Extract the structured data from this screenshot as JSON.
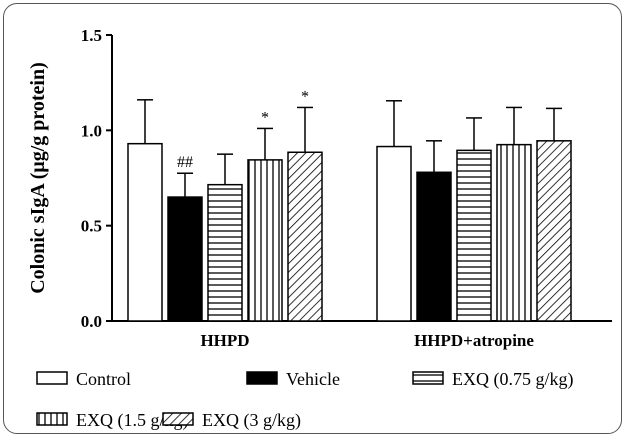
{
  "chart_data": {
    "type": "bar",
    "ylabel": "Colonic sIgA (μg/g protein)",
    "ylim": [
      0,
      1.5
    ],
    "yticks": [
      "0.0",
      "0.5",
      "1.0",
      "1.5"
    ],
    "yticks_values": [
      0,
      0.5,
      1.0,
      1.5
    ],
    "categories": [
      "HHPD",
      "HHPD+atropine"
    ],
    "series": [
      {
        "name": "Control",
        "pattern": "white",
        "values": [
          0.93,
          0.915
        ],
        "errors": [
          0.23,
          0.24
        ],
        "annotations": [
          "",
          ""
        ]
      },
      {
        "name": "Vehicle",
        "pattern": "black",
        "values": [
          0.65,
          0.78
        ],
        "errors": [
          0.125,
          0.165
        ],
        "annotations": [
          "##",
          ""
        ]
      },
      {
        "name": "EXQ (0.75 g/kg)",
        "pattern": "horizontal",
        "values": [
          0.715,
          0.895
        ],
        "errors": [
          0.16,
          0.17
        ],
        "annotations": [
          "",
          ""
        ]
      },
      {
        "name": "EXQ (1.5 g/kg)",
        "pattern": "vertical",
        "values": [
          0.845,
          0.925
        ],
        "errors": [
          0.165,
          0.195
        ],
        "annotations": [
          "*",
          ""
        ]
      },
      {
        "name": "EXQ (3 g/kg)",
        "pattern": "diagonal",
        "values": [
          0.885,
          0.945
        ],
        "errors": [
          0.235,
          0.17
        ],
        "annotations": [
          "*",
          ""
        ]
      }
    ],
    "legend_position": "bottom",
    "grid": false
  }
}
